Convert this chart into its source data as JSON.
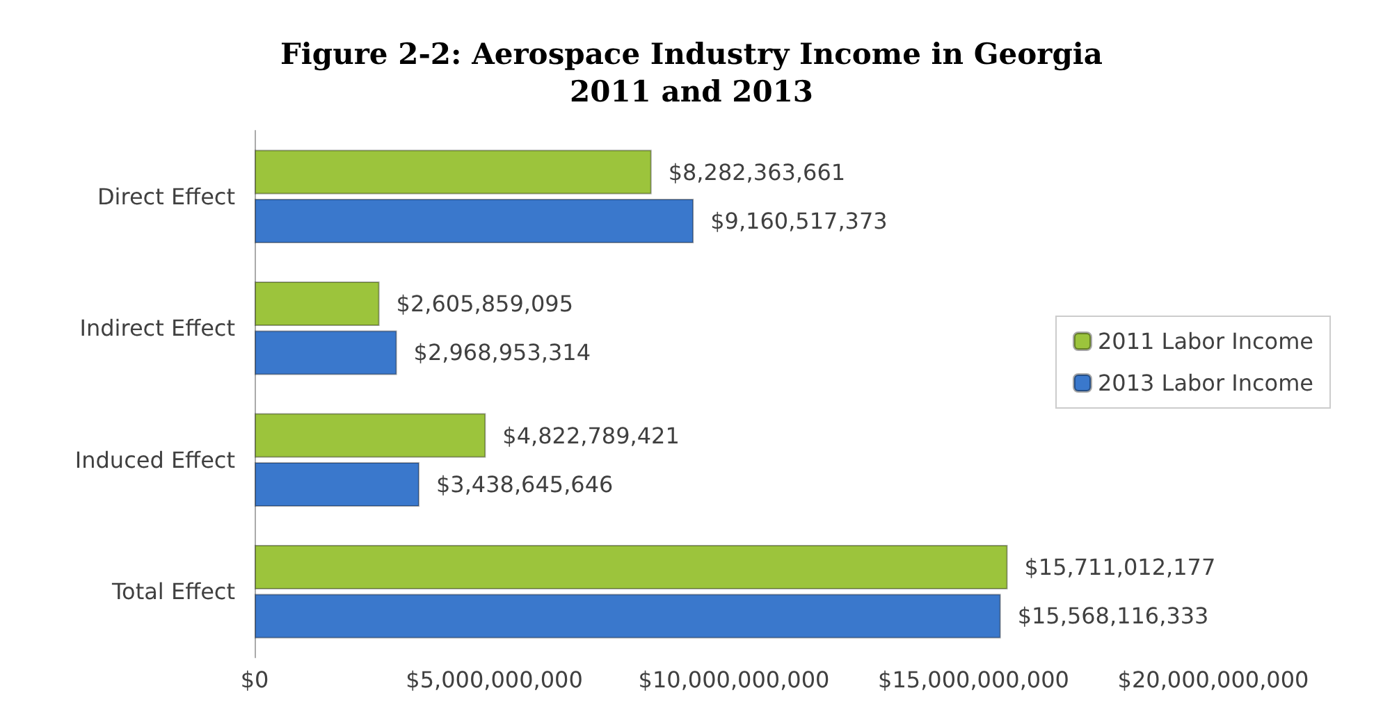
{
  "chart_data": {
    "type": "bar",
    "orientation": "horizontal",
    "title": "Figure 2-2: Aerospace Industry Income in Georgia\n2011 and 2013",
    "categories": [
      "Direct Effect",
      "Indirect Effect",
      "Induced Effect",
      "Total Effect"
    ],
    "series": [
      {
        "name": "2011 Labor Income",
        "color": "#9cc43c",
        "values": [
          8282363661,
          2605859095,
          4822789421,
          15711012177
        ],
        "value_labels": [
          "$8,282,363,661",
          "$2,605,859,095",
          "$4,822,789,421",
          "$15,711,012,177"
        ]
      },
      {
        "name": "2013 Labor Income",
        "color": "#3a78cc",
        "values": [
          9160517373,
          2968953314,
          3438645646,
          15568116333
        ],
        "value_labels": [
          "$9,160,517,373",
          "$2,968,953,314",
          "$3,438,645,646",
          "$15,568,116,333"
        ]
      }
    ],
    "xlim": [
      0,
      20000000000
    ],
    "xticks": [
      {
        "value": 0,
        "label": "$0"
      },
      {
        "value": 5000000000,
        "label": "$5,000,000,000"
      },
      {
        "value": 10000000000,
        "label": "$10,000,000,000"
      },
      {
        "value": 15000000000,
        "label": "$15,000,000,000"
      },
      {
        "value": 20000000000,
        "label": "$20,000,000,000"
      }
    ],
    "grid": false,
    "legend": "right"
  }
}
